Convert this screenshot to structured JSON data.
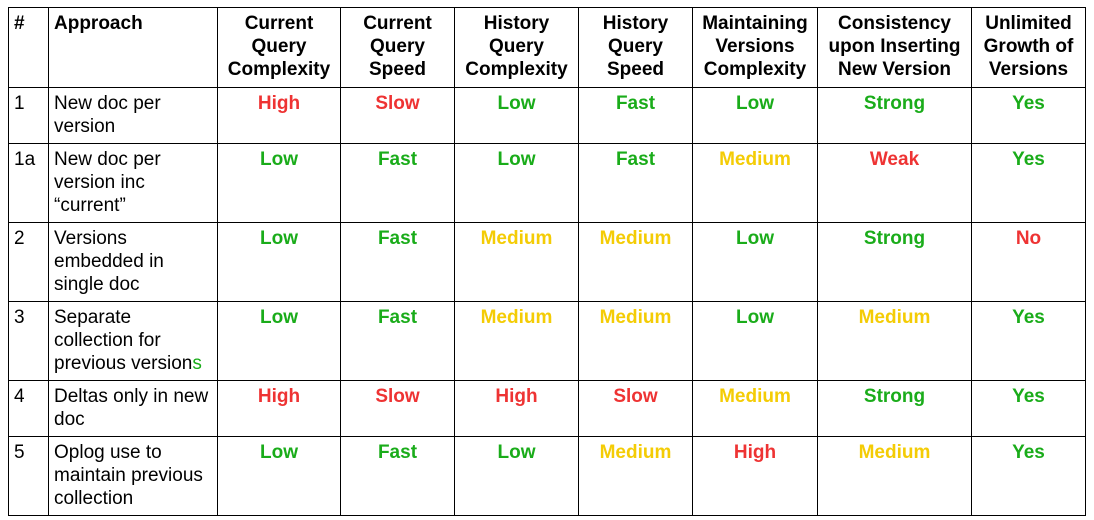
{
  "colors": {
    "green": "#1aac1a",
    "red": "#ee3333",
    "yellow": "#f4cc05",
    "text": "#000000"
  },
  "headers": [
    "#",
    "Approach",
    "Current Query Complexity",
    "Current Query Speed",
    "History Query Complexity",
    "History Query Speed",
    "Maintaining Versions Complexity",
    "Consistency upon Inserting New Version",
    "Unlimited Growth of Versions"
  ],
  "rows": [
    {
      "num": "1",
      "approach": "New doc per version",
      "cells": [
        {
          "text": "High",
          "color": "#ee3333"
        },
        {
          "text": "Slow",
          "color": "#ee3333"
        },
        {
          "text": "Low",
          "color": "#1aac1a"
        },
        {
          "text": "Fast",
          "color": "#1aac1a"
        },
        {
          "text": "Low",
          "color": "#1aac1a"
        },
        {
          "text": "Strong",
          "color": "#1aac1a"
        },
        {
          "text": "Yes",
          "color": "#1aac1a"
        }
      ]
    },
    {
      "num": "1a",
      "approach": "New doc per version inc “current”",
      "cells": [
        {
          "text": "Low",
          "color": "#1aac1a"
        },
        {
          "text": "Fast",
          "color": "#1aac1a"
        },
        {
          "text": "Low",
          "color": "#1aac1a"
        },
        {
          "text": "Fast",
          "color": "#1aac1a"
        },
        {
          "text": "Medium",
          "color": "#f4cc05"
        },
        {
          "text": "Weak",
          "color": "#ee3333"
        },
        {
          "text": "Yes",
          "color": "#1aac1a"
        }
      ]
    },
    {
      "num": "2",
      "approach": "Versions embedded in single doc",
      "cells": [
        {
          "text": "Low",
          "color": "#1aac1a"
        },
        {
          "text": "Fast",
          "color": "#1aac1a"
        },
        {
          "text": "Medium",
          "color": "#f4cc05"
        },
        {
          "text": "Medium",
          "color": "#f4cc05"
        },
        {
          "text": "Low",
          "color": "#1aac1a"
        },
        {
          "text": "Strong",
          "color": "#1aac1a"
        },
        {
          "text": "No",
          "color": "#ee3333"
        }
      ]
    },
    {
      "num": "3",
      "approach": "Separate collection for previous version",
      "approach_tail": "s",
      "cells": [
        {
          "text": "Low",
          "color": "#1aac1a"
        },
        {
          "text": "Fast",
          "color": "#1aac1a"
        },
        {
          "text": "Medium",
          "color": "#f4cc05"
        },
        {
          "text": "Medium",
          "color": "#f4cc05"
        },
        {
          "text": "Low",
          "color": "#1aac1a"
        },
        {
          "text": "Medium",
          "color": "#f4cc05"
        },
        {
          "text": "Yes",
          "color": "#1aac1a"
        }
      ]
    },
    {
      "num": "4",
      "approach": "Deltas only in new doc",
      "cells": [
        {
          "text": "High",
          "color": "#ee3333"
        },
        {
          "text": "Slow",
          "color": "#ee3333"
        },
        {
          "text": "High",
          "color": "#ee3333"
        },
        {
          "text": "Slow",
          "color": "#ee3333"
        },
        {
          "text": "Medium",
          "color": "#f4cc05"
        },
        {
          "text": "Strong",
          "color": "#1aac1a"
        },
        {
          "text": "Yes",
          "color": "#1aac1a"
        }
      ]
    },
    {
      "num": "5",
      "approach": "Oplog use to maintain previous collection",
      "cells": [
        {
          "text": "Low",
          "color": "#1aac1a"
        },
        {
          "text": "Fast",
          "color": "#1aac1a"
        },
        {
          "text": "Low",
          "color": "#1aac1a"
        },
        {
          "text": "Medium",
          "color": "#f4cc05"
        },
        {
          "text": "High",
          "color": "#ee3333"
        },
        {
          "text": "Medium",
          "color": "#f4cc05"
        },
        {
          "text": "Yes",
          "color": "#1aac1a"
        }
      ]
    }
  ]
}
